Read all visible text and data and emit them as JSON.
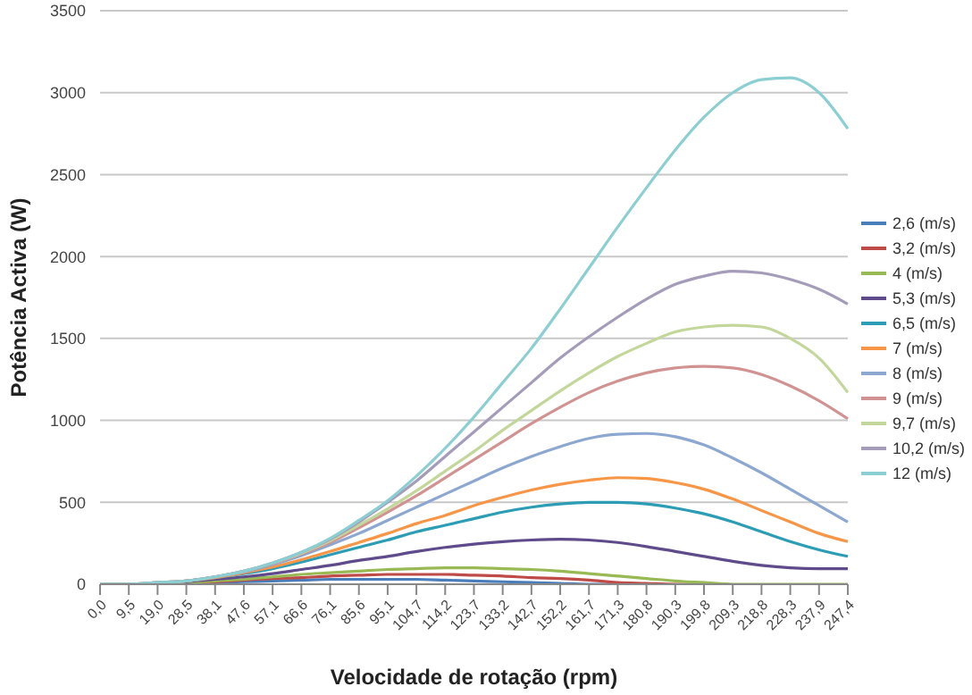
{
  "chart_data": {
    "type": "line",
    "xlabel": "Velocidade de rotação (rpm)",
    "ylabel": "Potência Activa (W)",
    "categories": [
      "0,0",
      "9,5",
      "19,0",
      "28,5",
      "38,1",
      "47,6",
      "57,1",
      "66,6",
      "76,1",
      "85,6",
      "95,1",
      "104,7",
      "114,2",
      "123,7",
      "133,2",
      "142,7",
      "152,2",
      "161,7",
      "171,3",
      "180,8",
      "190,3",
      "199,8",
      "209,3",
      "218,8",
      "228,3",
      "237,9",
      "247,4"
    ],
    "ylim": [
      0,
      3500
    ],
    "yticks": [
      0,
      500,
      1000,
      1500,
      2000,
      2500,
      3000,
      3500
    ],
    "grid": "y",
    "legend": "right",
    "marker": "none",
    "line_style": "solid",
    "series": [
      {
        "name": "2,6 (m/s)",
        "color": "#4a7ebb",
        "values": [
          0,
          0,
          0,
          5,
          10,
          15,
          20,
          25,
          30,
          30,
          30,
          30,
          25,
          20,
          15,
          10,
          5,
          0,
          0,
          0,
          null,
          null,
          null,
          null,
          null,
          null,
          null
        ]
      },
      {
        "name": "3,2 (m/s)",
        "color": "#be4b48",
        "values": [
          null,
          null,
          null,
          10,
          15,
          25,
          35,
          40,
          50,
          55,
          60,
          60,
          60,
          55,
          50,
          40,
          35,
          25,
          10,
          5,
          0,
          0,
          null,
          null,
          null,
          null,
          null
        ]
      },
      {
        "name": "4 (m/s)",
        "color": "#98b954",
        "values": [
          0,
          0,
          5,
          10,
          20,
          30,
          45,
          60,
          70,
          80,
          90,
          95,
          100,
          100,
          95,
          90,
          80,
          65,
          50,
          35,
          20,
          10,
          0,
          0,
          0,
          0,
          0
        ]
      },
      {
        "name": "5,3 (m/s)",
        "color": "#5f4b8b",
        "values": [
          0,
          0,
          5,
          15,
          30,
          45,
          65,
          90,
          115,
          145,
          170,
          200,
          225,
          245,
          260,
          270,
          275,
          270,
          255,
          230,
          200,
          170,
          140,
          115,
          100,
          95,
          95
        ]
      },
      {
        "name": "6,5 (m/s)",
        "color": "#2c9db5",
        "values": [
          0,
          0,
          5,
          20,
          40,
          65,
          95,
          135,
          180,
          225,
          270,
          320,
          360,
          400,
          440,
          470,
          490,
          500,
          500,
          490,
          465,
          430,
          380,
          320,
          260,
          210,
          170
        ]
      },
      {
        "name": "7 (m/s)",
        "color": "#f79646",
        "values": [
          null,
          null,
          10,
          20,
          40,
          70,
          105,
          150,
          200,
          255,
          310,
          370,
          420,
          480,
          530,
          575,
          610,
          635,
          650,
          645,
          620,
          580,
          520,
          450,
          380,
          310,
          260
        ]
      },
      {
        "name": "8 (m/s)",
        "color": "#8ca7d0",
        "values": [
          0,
          0,
          10,
          20,
          45,
          75,
          120,
          175,
          240,
          310,
          390,
          470,
          550,
          630,
          710,
          780,
          840,
          890,
          915,
          920,
          900,
          850,
          770,
          680,
          580,
          480,
          380
        ]
      },
      {
        "name": "9 (m/s)",
        "color": "#d19392",
        "values": [
          0,
          0,
          10,
          20,
          45,
          80,
          125,
          185,
          255,
          345,
          440,
          540,
          650,
          760,
          870,
          980,
          1080,
          1170,
          1240,
          1290,
          1320,
          1330,
          1320,
          1280,
          1210,
          1120,
          1010
        ]
      },
      {
        "name": "9,7 (m/s)",
        "color": "#c4d79b",
        "values": [
          0,
          0,
          10,
          20,
          45,
          80,
          130,
          190,
          265,
          360,
          460,
          570,
          690,
          810,
          940,
          1060,
          1180,
          1290,
          1390,
          1470,
          1540,
          1570,
          1580,
          1570,
          1500,
          1380,
          1170
        ]
      },
      {
        "name": "10,2 (m/s)",
        "color": "#a49cb8",
        "values": [
          0,
          0,
          10,
          20,
          45,
          80,
          130,
          195,
          275,
          380,
          500,
          630,
          780,
          930,
          1080,
          1230,
          1380,
          1510,
          1630,
          1740,
          1830,
          1880,
          1910,
          1900,
          1860,
          1800,
          1710
        ]
      },
      {
        "name": "12 (m/s)",
        "color": "#8ccfd3",
        "values": [
          0,
          0,
          10,
          20,
          45,
          80,
          130,
          195,
          280,
          390,
          510,
          660,
          830,
          1020,
          1230,
          1440,
          1680,
          1930,
          2180,
          2420,
          2650,
          2850,
          3000,
          3080,
          3090,
          3000,
          2780
        ]
      }
    ]
  }
}
